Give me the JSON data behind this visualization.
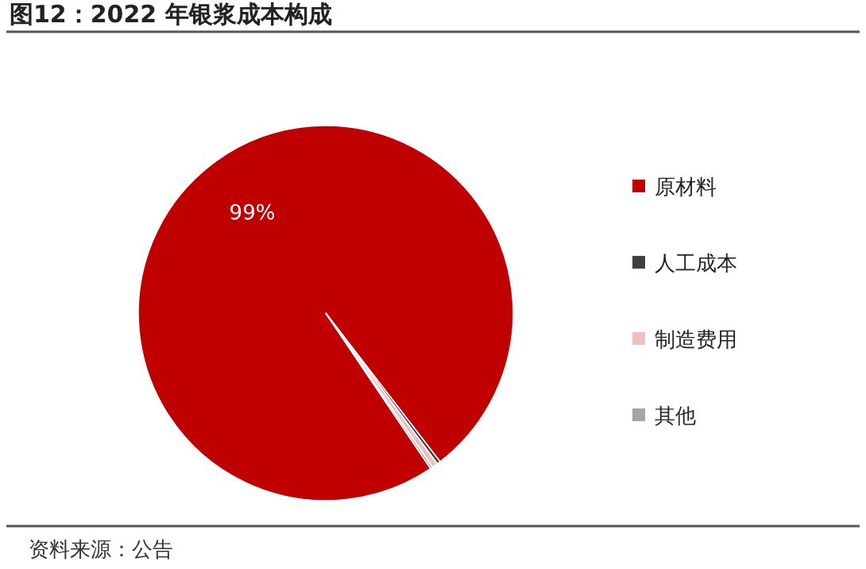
{
  "chart_data": {
    "type": "pie",
    "title": "图12：2022 年银浆成本构成",
    "categories": [
      "原材料",
      "人工成本",
      "制造费用",
      "其他"
    ],
    "values": [
      99,
      0.3,
      0.5,
      0.2
    ],
    "colors": [
      "#c00000",
      "#404040",
      "#f2bfbf",
      "#a6a6a6"
    ],
    "value_labels": [
      "99%",
      null,
      null,
      null
    ],
    "legend": "right",
    "annotations": [
      "资料来源：公告"
    ]
  }
}
